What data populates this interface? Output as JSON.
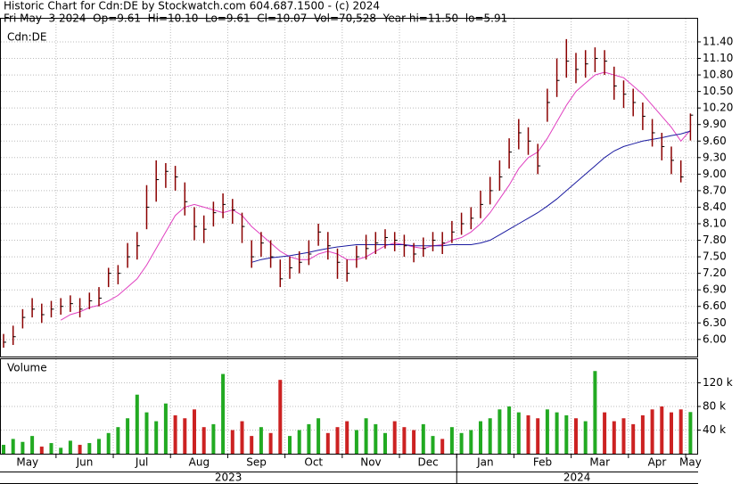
{
  "chart_data": {
    "type": "ohlc",
    "title": "Historic Chart for Cdn:DE by Stockwatch.com 604.687.1500 - (c) 2024",
    "subtitle": "Fri May  3 2024  Op=9.61  Hi=10.10  Lo=9.61  Cl=10.07  Vol=70,528  Year hi=11.50  lo=5.91",
    "panel_label": "Cdn:DE",
    "categories": [
      null,
      null,
      "May",
      null,
      null,
      null,
      null,
      null,
      "Jun",
      null,
      null,
      null,
      null,
      null,
      "Jul",
      null,
      null,
      null,
      null,
      null,
      "Aug",
      null,
      null,
      null,
      null,
      null,
      "Sep",
      null,
      null,
      null,
      null,
      null,
      "Oct",
      null,
      null,
      null,
      null,
      null,
      "Nov",
      null,
      null,
      null,
      null,
      null,
      "Dec",
      null,
      null,
      null,
      null,
      null,
      "Jan",
      null,
      null,
      null,
      null,
      null,
      "Feb",
      null,
      null,
      null,
      null,
      null,
      "Mar",
      null,
      null,
      null,
      null,
      null,
      "Apr",
      null,
      null,
      null,
      "May"
    ],
    "high": [
      6.1,
      6.25,
      6.55,
      6.75,
      6.65,
      6.7,
      6.75,
      6.8,
      6.75,
      6.85,
      6.95,
      7.3,
      7.35,
      7.75,
      7.95,
      8.8,
      9.25,
      9.2,
      9.15,
      8.85,
      8.4,
      8.25,
      8.5,
      8.65,
      8.55,
      8.3,
      7.8,
      7.95,
      7.8,
      7.45,
      7.5,
      7.6,
      7.8,
      8.1,
      7.95,
      7.65,
      7.45,
      7.7,
      7.9,
      7.95,
      8.0,
      7.95,
      7.9,
      7.75,
      7.85,
      7.95,
      7.95,
      8.15,
      8.3,
      8.4,
      8.7,
      8.95,
      9.25,
      9.65,
      10.0,
      9.85,
      9.55,
      10.55,
      11.1,
      11.45,
      11.2,
      11.25,
      11.3,
      11.25,
      10.95,
      10.7,
      10.55,
      10.3,
      10.0,
      9.75,
      9.5,
      9.25,
      10.1
    ],
    "low": [
      5.85,
      5.9,
      6.2,
      6.4,
      6.3,
      6.4,
      6.45,
      6.5,
      6.4,
      6.55,
      6.6,
      6.95,
      7.0,
      7.3,
      7.45,
      8.0,
      8.5,
      8.75,
      8.7,
      8.25,
      7.8,
      7.75,
      8.05,
      8.2,
      8.1,
      7.75,
      7.3,
      7.5,
      7.3,
      6.95,
      7.1,
      7.2,
      7.35,
      7.7,
      7.45,
      7.1,
      7.05,
      7.3,
      7.45,
      7.55,
      7.65,
      7.6,
      7.5,
      7.4,
      7.5,
      7.6,
      7.55,
      7.75,
      7.9,
      8.0,
      8.2,
      8.45,
      8.7,
      9.1,
      9.45,
      9.35,
      9.0,
      9.95,
      10.4,
      10.75,
      10.65,
      10.75,
      10.85,
      10.8,
      10.35,
      10.2,
      10.05,
      9.8,
      9.5,
      9.25,
      9.0,
      8.85,
      9.61
    ],
    "close": [
      5.95,
      6.05,
      6.4,
      6.55,
      6.45,
      6.55,
      6.6,
      6.65,
      6.55,
      6.7,
      6.75,
      7.2,
      7.2,
      7.5,
      7.7,
      8.4,
      8.9,
      9.05,
      8.95,
      8.5,
      8.05,
      8.0,
      8.3,
      8.45,
      8.35,
      8.05,
      7.5,
      7.75,
      7.5,
      7.1,
      7.3,
      7.4,
      7.55,
      7.95,
      7.7,
      7.4,
      7.2,
      7.5,
      7.65,
      7.75,
      7.85,
      7.8,
      7.7,
      7.55,
      7.65,
      7.8,
      7.75,
      7.95,
      8.1,
      8.2,
      8.45,
      8.7,
      8.95,
      9.4,
      9.75,
      9.6,
      9.15,
      10.3,
      10.7,
      11.05,
      10.9,
      11.0,
      11.1,
      11.05,
      10.6,
      10.45,
      10.3,
      10.05,
      9.75,
      9.5,
      9.25,
      8.95,
      10.07
    ],
    "color": "#8b0000",
    "ylim": [
      5.69,
      11.82
    ],
    "yticks": [
      {
        "value": 6.0,
        "label": "6.00"
      },
      {
        "value": 6.3,
        "label": "6.30"
      },
      {
        "value": 6.6,
        "label": "6.60"
      },
      {
        "value": 6.9,
        "label": "6.90"
      },
      {
        "value": 7.2,
        "label": "7.20"
      },
      {
        "value": 7.5,
        "label": "7.50"
      },
      {
        "value": 7.8,
        "label": "7.80"
      },
      {
        "value": 8.1,
        "label": "8.10"
      },
      {
        "value": 8.4,
        "label": "8.40"
      },
      {
        "value": 8.7,
        "label": "8.70"
      },
      {
        "value": 9.0,
        "label": "9.00"
      },
      {
        "value": 9.3,
        "label": "9.30"
      },
      {
        "value": 9.6,
        "label": "9.60"
      },
      {
        "value": 9.9,
        "label": "9.90"
      },
      {
        "value": 10.2,
        "label": "10.20"
      },
      {
        "value": 10.5,
        "label": "10.50"
      },
      {
        "value": 10.8,
        "label": "10.80"
      },
      {
        "value": 11.1,
        "label": "11.10"
      },
      {
        "value": 11.4,
        "label": "11.40"
      }
    ],
    "grid": true,
    "moving_averages": [
      {
        "color": "#e040c0",
        "values": [
          null,
          null,
          null,
          null,
          null,
          null,
          6.35,
          6.45,
          6.5,
          6.58,
          6.62,
          6.7,
          6.8,
          6.95,
          7.1,
          7.35,
          7.65,
          7.95,
          8.25,
          8.4,
          8.45,
          8.4,
          8.35,
          8.3,
          8.35,
          8.25,
          8.05,
          7.9,
          7.75,
          7.6,
          7.5,
          7.45,
          7.45,
          7.55,
          7.6,
          7.55,
          7.45,
          7.45,
          7.5,
          7.6,
          7.7,
          7.75,
          7.72,
          7.68,
          7.65,
          7.7,
          7.72,
          7.8,
          7.85,
          7.95,
          8.1,
          8.3,
          8.55,
          8.8,
          9.1,
          9.3,
          9.4,
          9.65,
          9.95,
          10.25,
          10.5,
          10.65,
          10.8,
          10.85,
          10.8,
          10.75,
          10.6,
          10.45,
          10.25,
          10.05,
          9.85,
          9.6,
          9.8
        ]
      },
      {
        "color": "#1a1aa0",
        "values": [
          null,
          null,
          null,
          null,
          null,
          null,
          null,
          null,
          null,
          null,
          null,
          null,
          null,
          null,
          null,
          null,
          null,
          null,
          null,
          null,
          null,
          null,
          null,
          null,
          null,
          null,
          7.4,
          7.45,
          7.48,
          7.5,
          7.52,
          7.55,
          7.58,
          7.62,
          7.65,
          7.68,
          7.7,
          7.72,
          7.72,
          7.72,
          7.72,
          7.72,
          7.72,
          7.7,
          7.7,
          7.7,
          7.7,
          7.72,
          7.72,
          7.72,
          7.75,
          7.8,
          7.9,
          8.0,
          8.1,
          8.2,
          8.3,
          8.42,
          8.55,
          8.7,
          8.85,
          9.0,
          9.15,
          9.3,
          9.42,
          9.5,
          9.55,
          9.6,
          9.63,
          9.66,
          9.7,
          9.73,
          9.78
        ]
      }
    ],
    "volume": {
      "label": "Volume",
      "values": [
        15000,
        25000,
        20000,
        30000,
        12000,
        18000,
        10000,
        22000,
        15000,
        18000,
        25000,
        35000,
        45000,
        60000,
        100000,
        70000,
        55000,
        85000,
        65000,
        60000,
        75000,
        45000,
        50000,
        135000,
        40000,
        55000,
        30000,
        45000,
        35000,
        125000,
        30000,
        40000,
        50000,
        60000,
        35000,
        45000,
        55000,
        40000,
        60000,
        50000,
        35000,
        55000,
        45000,
        40000,
        50000,
        30000,
        25000,
        45000,
        35000,
        40000,
        55000,
        60000,
        75000,
        80000,
        70000,
        65000,
        60000,
        75000,
        70000,
        65000,
        60000,
        55000,
        140000,
        70000,
        55000,
        60000,
        50000,
        65000,
        75000,
        80000,
        70000,
        75000,
        70528
      ],
      "up_color": "#22aa22",
      "down_color": "#cc2222",
      "ylim": [
        0,
        160000
      ],
      "yticks": [
        {
          "value": 40000,
          "label": "40 k"
        },
        {
          "value": 80000,
          "label": "80 k"
        },
        {
          "value": 120000,
          "label": "120 k"
        }
      ]
    },
    "years": [
      "2023",
      "2024"
    ]
  }
}
